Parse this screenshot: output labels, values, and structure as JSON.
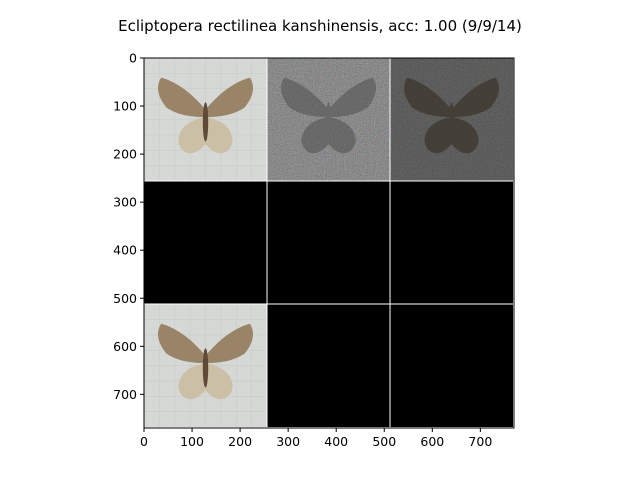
{
  "figure": {
    "title": "Ecliptopera rectilinea kanshinensis, acc: 1.00 (9/9/14)"
  },
  "axes": {
    "x_ticks": [
      "0",
      "100",
      "200",
      "300",
      "400",
      "500",
      "600",
      "700"
    ],
    "y_ticks": [
      "0",
      "100",
      "200",
      "300",
      "400",
      "500",
      "600",
      "700"
    ],
    "x_range": [
      0,
      770
    ],
    "y_range": [
      0,
      770
    ]
  },
  "grid": {
    "rows": 3,
    "cols": 3,
    "tile_size": 256,
    "tiles": [
      {
        "row": 0,
        "col": 0,
        "kind": "moth"
      },
      {
        "row": 0,
        "col": 1,
        "kind": "noise-bright"
      },
      {
        "row": 0,
        "col": 2,
        "kind": "noise-dark"
      },
      {
        "row": 1,
        "col": 0,
        "kind": "black"
      },
      {
        "row": 1,
        "col": 1,
        "kind": "black"
      },
      {
        "row": 1,
        "col": 2,
        "kind": "black"
      },
      {
        "row": 2,
        "col": 0,
        "kind": "moth"
      },
      {
        "row": 2,
        "col": 1,
        "kind": "black"
      },
      {
        "row": 2,
        "col": 2,
        "kind": "black"
      }
    ]
  },
  "colors": {
    "moth_bg": "#d6d8d6",
    "moth_wing": "#9a8468",
    "moth_wing_light": "#cbbfa6",
    "moth_body": "#5e4a36",
    "noise_bg": "#262626",
    "black": "#000000",
    "separator": "#ffffff"
  }
}
